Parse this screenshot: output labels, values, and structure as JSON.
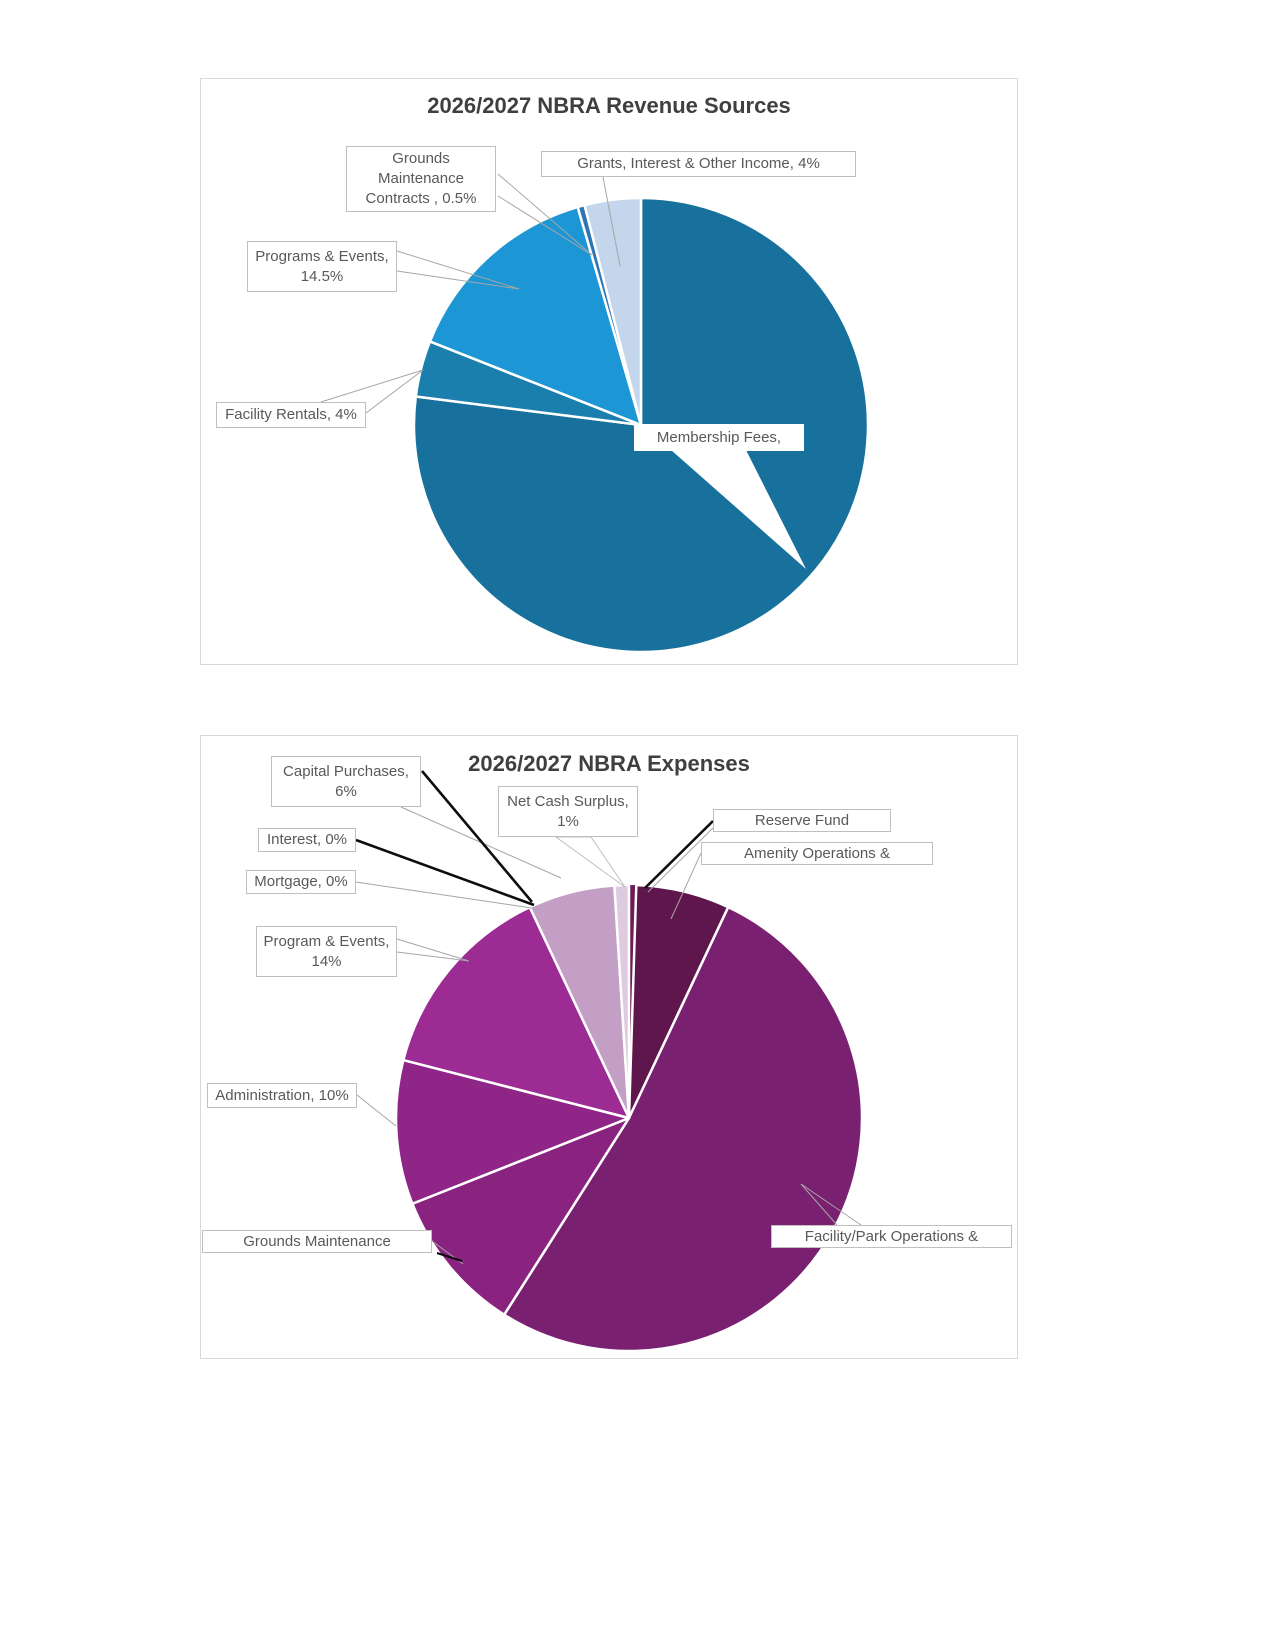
{
  "page": {
    "background": "#ffffff",
    "charts_order": [
      "revenue",
      "expenses"
    ]
  },
  "chart_data": [
    {
      "id": "revenue",
      "type": "pie",
      "title": "2026/2027 NBRA Revenue Sources",
      "title_color": "#3f3f3f",
      "legend_position": "none",
      "data_labels": "callouts-with-leader-lines",
      "slices": [
        {
          "id": "membership",
          "label": "Membership Fees",
          "pct": 77,
          "pct_visible": false,
          "estimated": true,
          "color": "#17719C",
          "callout_lines": [
            "Membership Fees,"
          ]
        },
        {
          "id": "facility_rentals",
          "label": "Facility Rentals",
          "pct": 4,
          "pct_visible": true,
          "color": "#1B7FAE",
          "callout_lines": [
            "Facility Rentals, 4%"
          ]
        },
        {
          "id": "programs_events",
          "label": "Programs & Events",
          "pct": 14.5,
          "pct_visible": true,
          "color": "#1C96D4",
          "callout_lines": [
            "Programs & Events,",
            "14.5%"
          ]
        },
        {
          "id": "grounds_maintenance_contracts",
          "label": "Grounds Maintenance Contracts",
          "pct": 0.5,
          "pct_visible": true,
          "color": "#2E75B6",
          "callout_lines": [
            "Grounds",
            "Maintenance",
            "Contracts , 0.5%"
          ]
        },
        {
          "id": "grants_interest_other",
          "label": "Grants, Interest & Other Income",
          "pct": 4,
          "pct_visible": true,
          "color": "#C3D6EC",
          "callout_lines": [
            "Grants, Interest & Other Income, 4%"
          ]
        }
      ]
    },
    {
      "id": "expenses",
      "type": "pie",
      "title": "2026/2027 NBRA Expenses",
      "title_color": "#3f3f3f",
      "legend_position": "none",
      "data_labels": "callouts-with-leader-lines",
      "slices": [
        {
          "id": "reserve_fund",
          "label": "Reserve Fund",
          "pct": 0.5,
          "pct_visible": false,
          "estimated": true,
          "color": "#6E1B59",
          "no_border": true,
          "callout_lines": [
            "Reserve Fund"
          ]
        },
        {
          "id": "amenity_operations",
          "label": "Amenity Operations &",
          "pct": 6.5,
          "pct_visible": false,
          "estimated": true,
          "color": "#5F164D",
          "callout_lines": [
            "Amenity Operations &"
          ]
        },
        {
          "id": "facility_park_operations",
          "label": "Facility/Park Operations &",
          "pct": 52,
          "pct_visible": false,
          "estimated": true,
          "color": "#7A2071",
          "callout_lines": [
            "Facility/Park Operations &"
          ]
        },
        {
          "id": "grounds_maintenance",
          "label": "Grounds Maintenance",
          "pct": 10,
          "pct_visible": false,
          "estimated": true,
          "color": "#8A2380",
          "callout_lines": [
            "Grounds Maintenance"
          ]
        },
        {
          "id": "administration",
          "label": "Administration",
          "pct": 10,
          "pct_visible": true,
          "color": "#8F2586",
          "callout_lines": [
            "Administration, 10%"
          ]
        },
        {
          "id": "program_events",
          "label": "Program & Events",
          "pct": 14,
          "pct_visible": true,
          "color": "#9C2B94",
          "callout_lines": [
            "Program & Events,",
            "14%"
          ]
        },
        {
          "id": "mortgage",
          "label": "Mortgage",
          "pct": 0,
          "pct_visible": true,
          "color": "#B063A9",
          "callout_lines": [
            "Mortgage, 0%"
          ]
        },
        {
          "id": "interest",
          "label": "Interest",
          "pct": 0,
          "pct_visible": true,
          "color": "#A94FA0",
          "callout_lines": [
            "Interest, 0%"
          ]
        },
        {
          "id": "capital_purchases",
          "label": "Capital Purchases",
          "pct": 6,
          "pct_visible": true,
          "color": "#C49FC5",
          "callout_lines": [
            "Capital Purchases,",
            "6%"
          ]
        },
        {
          "id": "net_cash_surplus",
          "label": "Net Cash Surplus",
          "pct": 1,
          "pct_visible": true,
          "color": "#DFCBDF",
          "callout_lines": [
            "Net Cash Surplus,",
            "1%"
          ]
        }
      ]
    }
  ]
}
